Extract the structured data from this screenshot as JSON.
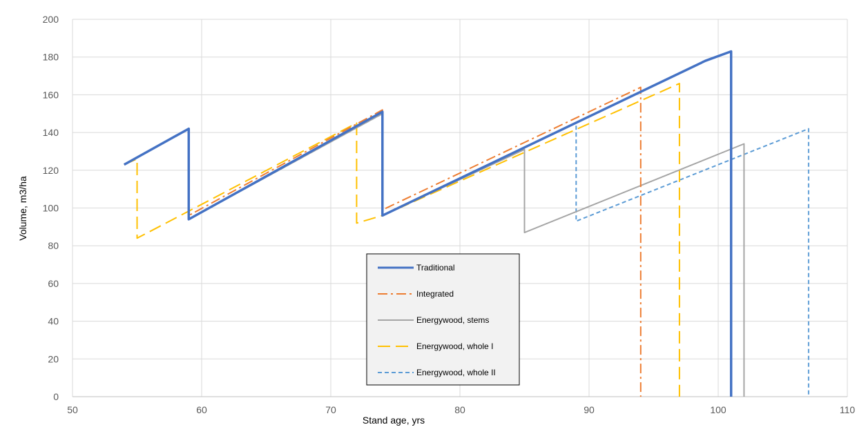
{
  "chart_data": {
    "type": "line",
    "title": "",
    "xlabel": "Stand age, yrs",
    "ylabel": "Volume, m3/ha",
    "xlim": [
      50,
      110
    ],
    "ylim": [
      0,
      200
    ],
    "xticks": [
      50,
      60,
      70,
      80,
      90,
      100,
      110
    ],
    "yticks": [
      0,
      20,
      40,
      60,
      80,
      100,
      120,
      140,
      160,
      180,
      200
    ],
    "grid": true,
    "legend_position": "center-bottom",
    "series": [
      {
        "name": "Traditional",
        "color": "#4472C4",
        "dash": "solid",
        "points": [
          [
            54,
            123
          ],
          [
            59,
            142
          ],
          [
            59,
            94
          ],
          [
            74,
            151
          ],
          [
            74,
            96
          ],
          [
            99,
            178
          ],
          [
            101,
            183
          ],
          [
            101,
            0
          ]
        ]
      },
      {
        "name": "Integrated",
        "color": "#ED7D31",
        "dash": "dashdot",
        "points": [
          [
            54,
            123
          ],
          [
            59,
            142
          ],
          [
            59,
            96
          ],
          [
            74,
            152
          ],
          [
            74,
            99
          ],
          [
            94,
            164
          ],
          [
            94,
            0
          ]
        ]
      },
      {
        "name": "Energywood, stems",
        "color": "#A5A5A5",
        "dash": "solid",
        "points": [
          [
            54,
            123
          ],
          [
            59,
            142
          ],
          [
            59,
            94
          ],
          [
            74,
            150
          ],
          [
            74,
            96
          ],
          [
            85,
            131
          ],
          [
            85,
            87
          ],
          [
            102,
            134
          ],
          [
            102,
            0
          ]
        ]
      },
      {
        "name": "Energywood, whole I",
        "color": "#FFC000",
        "dash": "longdash",
        "points": [
          [
            54,
            123
          ],
          [
            55,
            126
          ],
          [
            55,
            84
          ],
          [
            72,
            145
          ],
          [
            72,
            92
          ],
          [
            74,
            96
          ],
          [
            97,
            166
          ],
          [
            97,
            0
          ]
        ]
      },
      {
        "name": "Energywood, whole II",
        "color": "#5B9BD5",
        "dash": "shortdash",
        "points": [
          [
            54,
            123
          ],
          [
            59,
            142
          ],
          [
            59,
            94
          ],
          [
            74,
            150
          ],
          [
            74,
            96
          ],
          [
            89,
            145
          ],
          [
            89,
            93
          ],
          [
            107,
            142
          ],
          [
            107,
            0
          ]
        ]
      }
    ]
  }
}
